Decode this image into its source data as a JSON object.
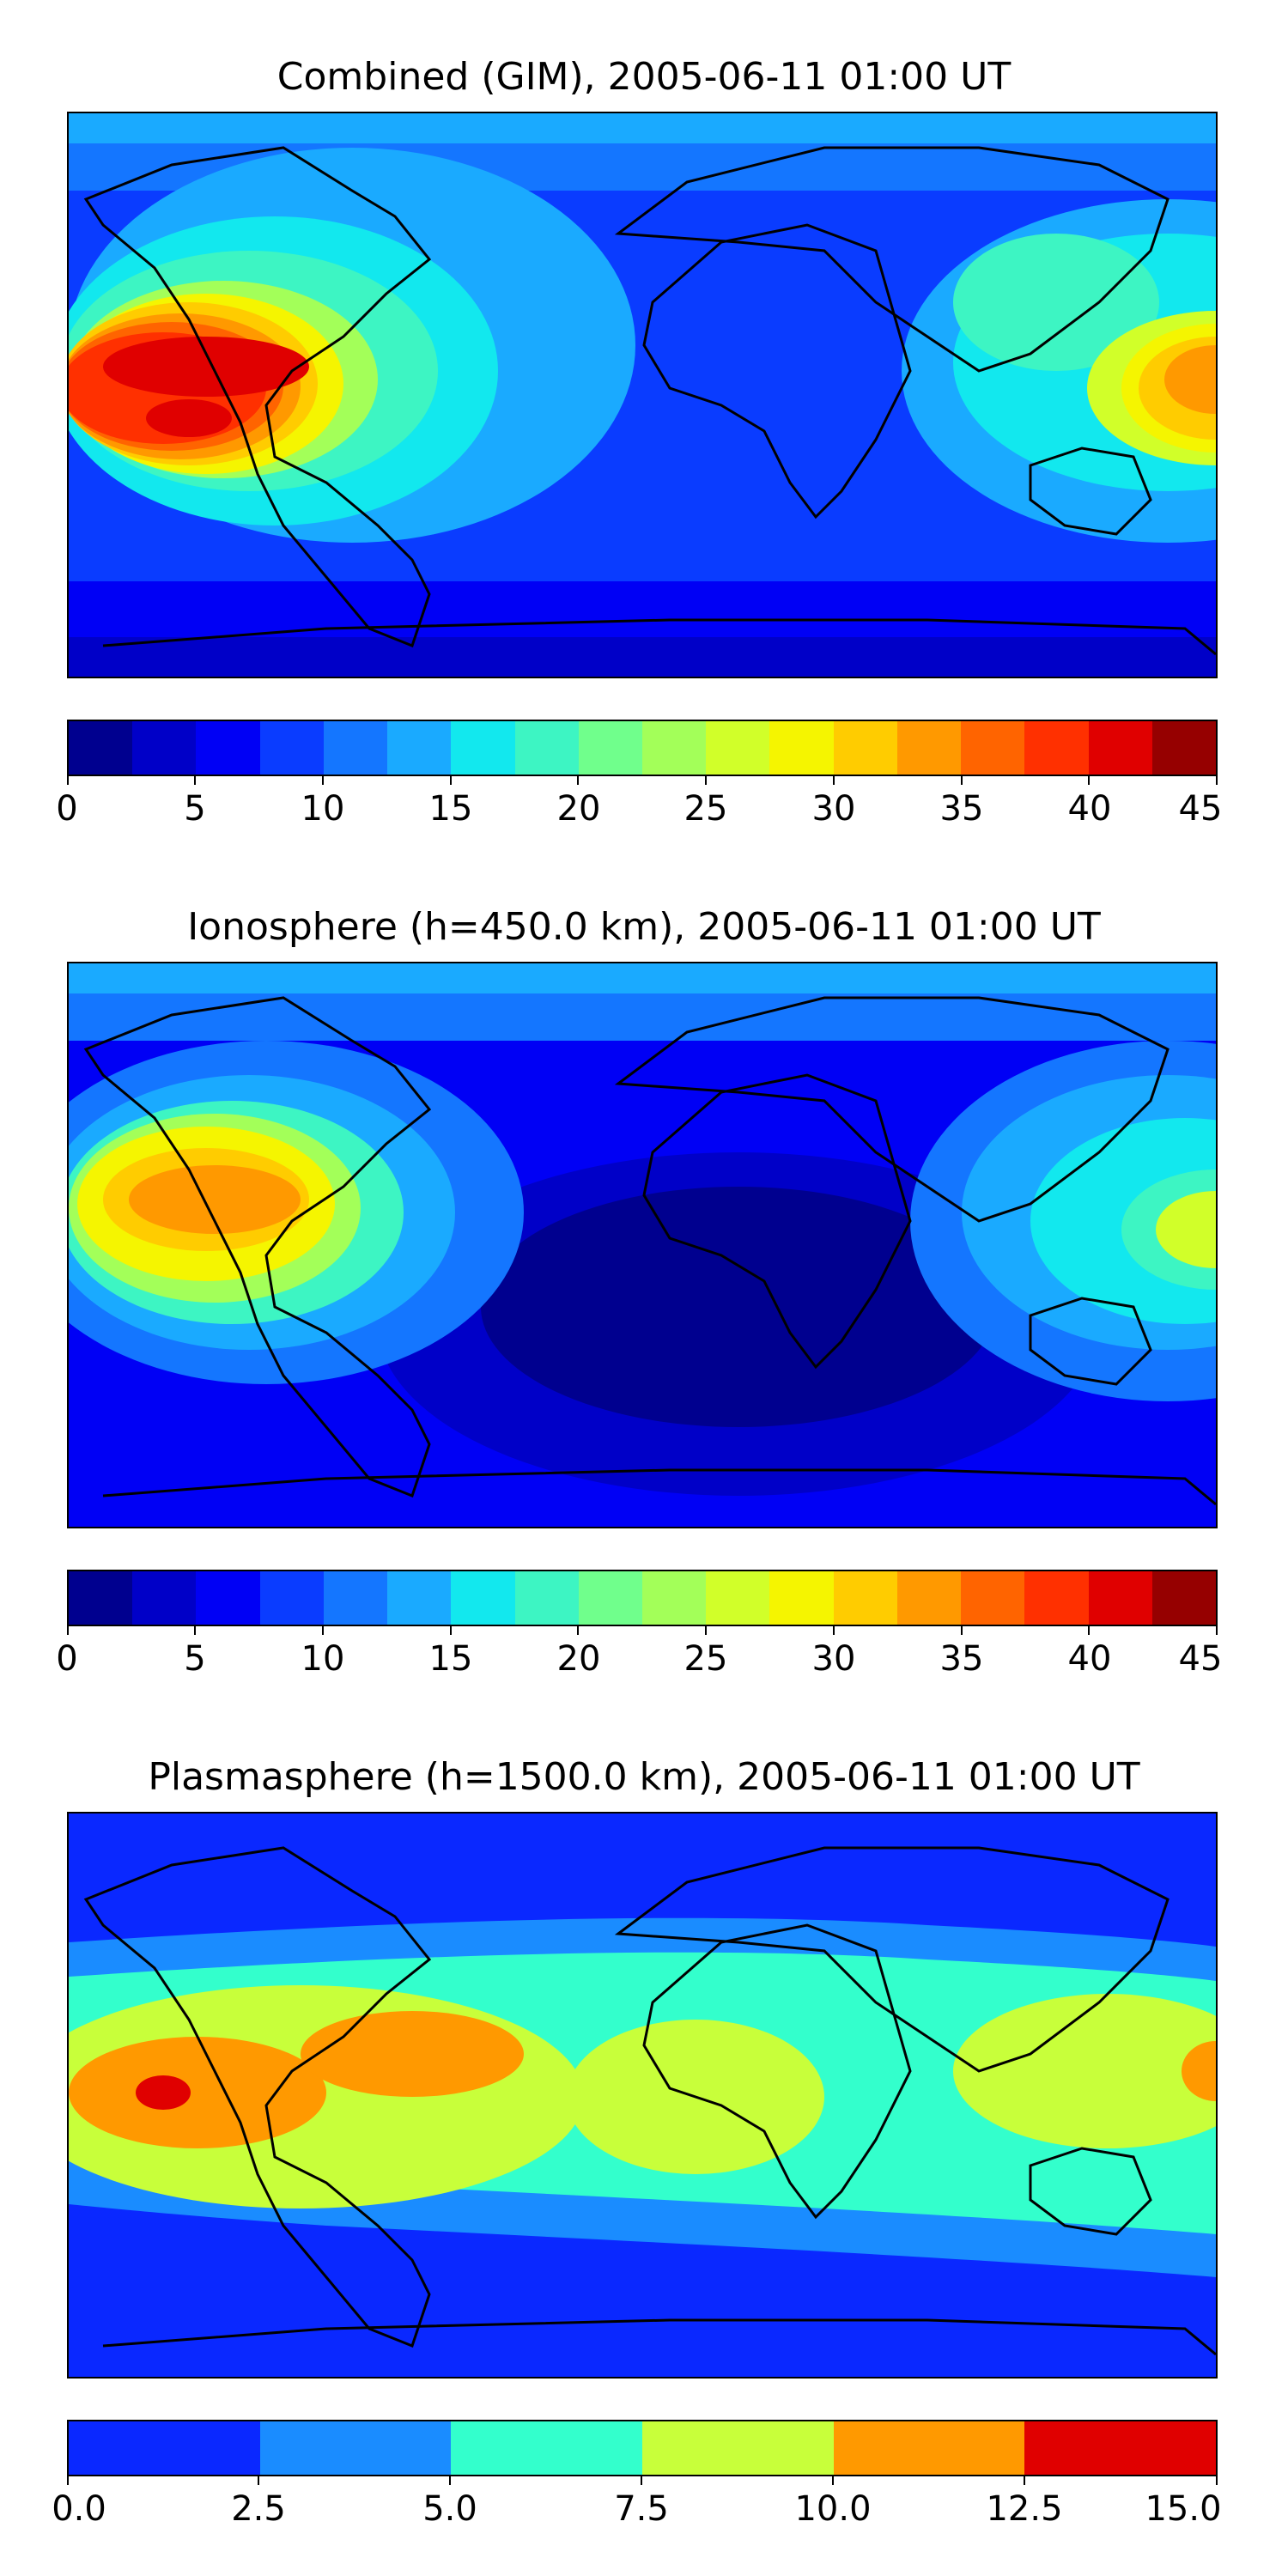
{
  "panels": [
    {
      "title": "Combined (GIM), 2005-06-11 01:00 UT",
      "colorbar": {
        "range": [
          0,
          45
        ],
        "levels": [
          0,
          2.5,
          5,
          7.5,
          10,
          12.5,
          15,
          17.5,
          20,
          22.5,
          25,
          27.5,
          30,
          32.5,
          35,
          37.5,
          40,
          42.5,
          45
        ],
        "tick_labels": [
          "0",
          "5",
          "10",
          "15",
          "20",
          "25",
          "30",
          "35",
          "40",
          "45"
        ],
        "colors": [
          "#00008f",
          "#0000c8",
          "#0000f5",
          "#0a3cff",
          "#1476ff",
          "#1aaaff",
          "#12e8ee",
          "#3df5c3",
          "#70ff8c",
          "#a3ff59",
          "#d1ff29",
          "#f5f500",
          "#ffcc00",
          "#ff9900",
          "#ff6400",
          "#ff3000",
          "#e00000",
          "#960000"
        ]
      }
    },
    {
      "title": "Ionosphere  (h=450.0 km), 2005-06-11 01:00 UT",
      "colorbar": {
        "range": [
          0,
          45
        ],
        "levels": [
          0,
          2.5,
          5,
          7.5,
          10,
          12.5,
          15,
          17.5,
          20,
          22.5,
          25,
          27.5,
          30,
          32.5,
          35,
          37.5,
          40,
          42.5,
          45
        ],
        "tick_labels": [
          "0",
          "5",
          "10",
          "15",
          "20",
          "25",
          "30",
          "35",
          "40",
          "45"
        ],
        "colors": [
          "#00008f",
          "#0000c8",
          "#0000f5",
          "#0a3cff",
          "#1476ff",
          "#1aaaff",
          "#12e8ee",
          "#3df5c3",
          "#70ff8c",
          "#a3ff59",
          "#d1ff29",
          "#f5f500",
          "#ffcc00",
          "#ff9900",
          "#ff6400",
          "#ff3000",
          "#e00000",
          "#960000"
        ]
      }
    },
    {
      "title": "Plasmasphere (h=1500.0 km), 2005-06-11 01:00 UT",
      "colorbar": {
        "range": [
          0,
          15
        ],
        "levels": [
          0,
          2.5,
          5,
          7.5,
          10,
          12.5,
          15
        ],
        "tick_labels": [
          "0.0",
          "2.5",
          "5.0",
          "7.5",
          "10.0",
          "12.5",
          "15.0"
        ],
        "colors": [
          "#0a28ff",
          "#1a8cff",
          "#33ffcc",
          "#c8ff3a",
          "#ff9900",
          "#e00000"
        ]
      }
    }
  ]
}
